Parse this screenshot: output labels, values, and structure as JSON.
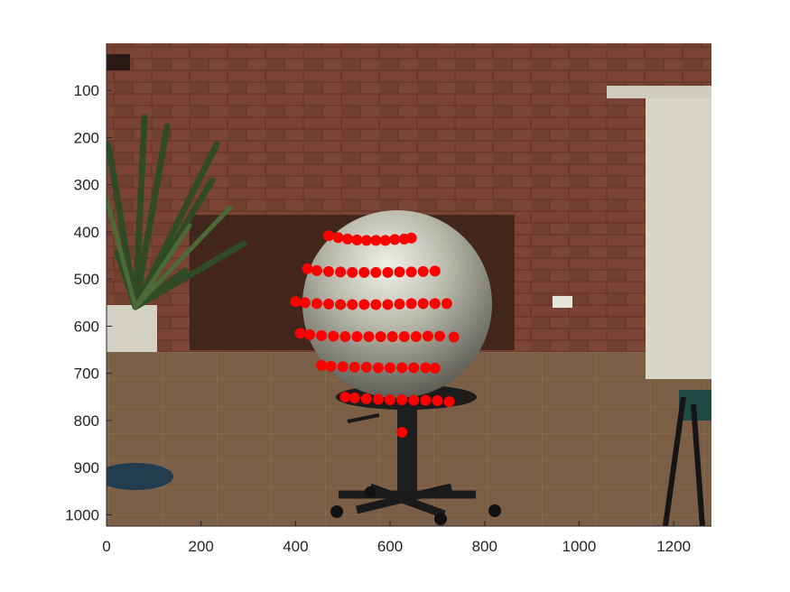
{
  "figure": {
    "kind": "image-with-point-overlay",
    "scene": "Photograph of a silver exercise ball resting on a black office chair in front of a red brick wall; a potted palm plant at the left, a white door at the right; tiled floor",
    "x_axis": {
      "lim": [
        0,
        1280
      ],
      "ticks": [
        0,
        200,
        400,
        600,
        800,
        1000,
        1200
      ],
      "tick_labels": [
        "0",
        "200",
        "400",
        "600",
        "800",
        "1000",
        "1200"
      ]
    },
    "y_axis": {
      "lim": [
        0,
        1024
      ],
      "reversed": true,
      "ticks": [
        100,
        200,
        300,
        400,
        500,
        600,
        700,
        800,
        900,
        1000
      ],
      "tick_labels": [
        "100",
        "200",
        "300",
        "400",
        "500",
        "600",
        "700",
        "800",
        "900",
        "1000"
      ]
    },
    "marker_color": "#ff0000",
    "colors": {
      "brick": "#6b3a2c",
      "mortar": "#a98a78",
      "floor": "#7a5e45",
      "ball": "#b9b9ac",
      "chair": "#1c1c1c",
      "door": "#d8d6c8",
      "plant": "#2f4a25"
    }
  },
  "chart_data": {
    "type": "scatter",
    "xlim": [
      0,
      1280
    ],
    "ylim": [
      1024,
      0
    ],
    "y_reversed": true,
    "marker": "filled-circle",
    "color": "#ff0000",
    "series": [
      {
        "x": [
          470,
          490,
          510,
          530,
          550,
          570,
          590,
          610,
          630,
          645
        ],
        "y": [
          408,
          412,
          415,
          417,
          418,
          418,
          418,
          416,
          415,
          413
        ]
      },
      {
        "x": [
          425,
          445,
          470,
          495,
          520,
          545,
          570,
          595,
          620,
          645,
          670,
          695
        ],
        "y": [
          478,
          482,
          484,
          485,
          486,
          486,
          486,
          486,
          485,
          485,
          484,
          483
        ]
      },
      {
        "x": [
          400,
          420,
          445,
          470,
          495,
          520,
          545,
          570,
          595,
          620,
          645,
          670,
          695,
          720
        ],
        "y": [
          548,
          550,
          552,
          553,
          554,
          554,
          554,
          554,
          554,
          553,
          552,
          552,
          552,
          552
        ]
      },
      {
        "x": [
          410,
          430,
          455,
          480,
          505,
          530,
          555,
          580,
          605,
          630,
          655,
          680,
          705,
          735
        ],
        "y": [
          615,
          618,
          620,
          621,
          622,
          622,
          622,
          622,
          622,
          622,
          622,
          621,
          621,
          623
        ]
      },
      {
        "x": [
          455,
          475,
          500,
          525,
          550,
          575,
          600,
          625,
          650,
          675,
          695
        ],
        "y": [
          683,
          685,
          686,
          687,
          687,
          688,
          688,
          688,
          688,
          688,
          689
        ]
      },
      {
        "x": [
          505,
          525,
          550,
          575,
          600,
          625,
          650,
          675,
          700,
          725
        ],
        "y": [
          750,
          752,
          754,
          755,
          756,
          756,
          757,
          757,
          758,
          760
        ]
      },
      {
        "x": [
          625
        ],
        "y": [
          825
        ]
      }
    ]
  }
}
